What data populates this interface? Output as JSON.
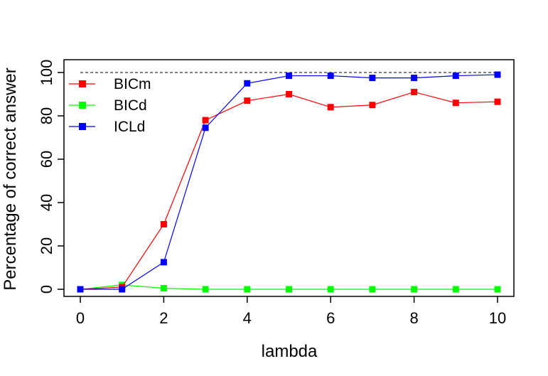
{
  "chart_data": {
    "type": "line",
    "title": "",
    "xlabel": "lambda",
    "ylabel": "Percentage of correct answer",
    "xlim": [
      0,
      10
    ],
    "ylim": [
      0,
      100
    ],
    "xticks": [
      0,
      2,
      4,
      6,
      8,
      10
    ],
    "yticks": [
      0,
      20,
      40,
      60,
      80,
      100
    ],
    "grid": false,
    "legend_position": "top-left",
    "reference_line": {
      "y": 100,
      "style": "dashed",
      "color": "#000000"
    },
    "x": [
      0,
      1,
      2,
      3,
      4,
      5,
      6,
      7,
      8,
      9,
      10
    ],
    "series": [
      {
        "name": "BICm",
        "color": "#ff0000",
        "values": [
          0,
          1,
          30,
          78,
          87,
          90,
          84,
          85,
          91,
          86,
          86.5
        ]
      },
      {
        "name": "BICd",
        "color": "#00ff00",
        "values": [
          0,
          2,
          0.5,
          0,
          0,
          0,
          0,
          0,
          0,
          0,
          0
        ]
      },
      {
        "name": "ICLd",
        "color": "#0000ff",
        "values": [
          0,
          0,
          12.5,
          74.5,
          95,
          98.5,
          98.5,
          97.5,
          97.5,
          98.5,
          99
        ]
      }
    ]
  }
}
